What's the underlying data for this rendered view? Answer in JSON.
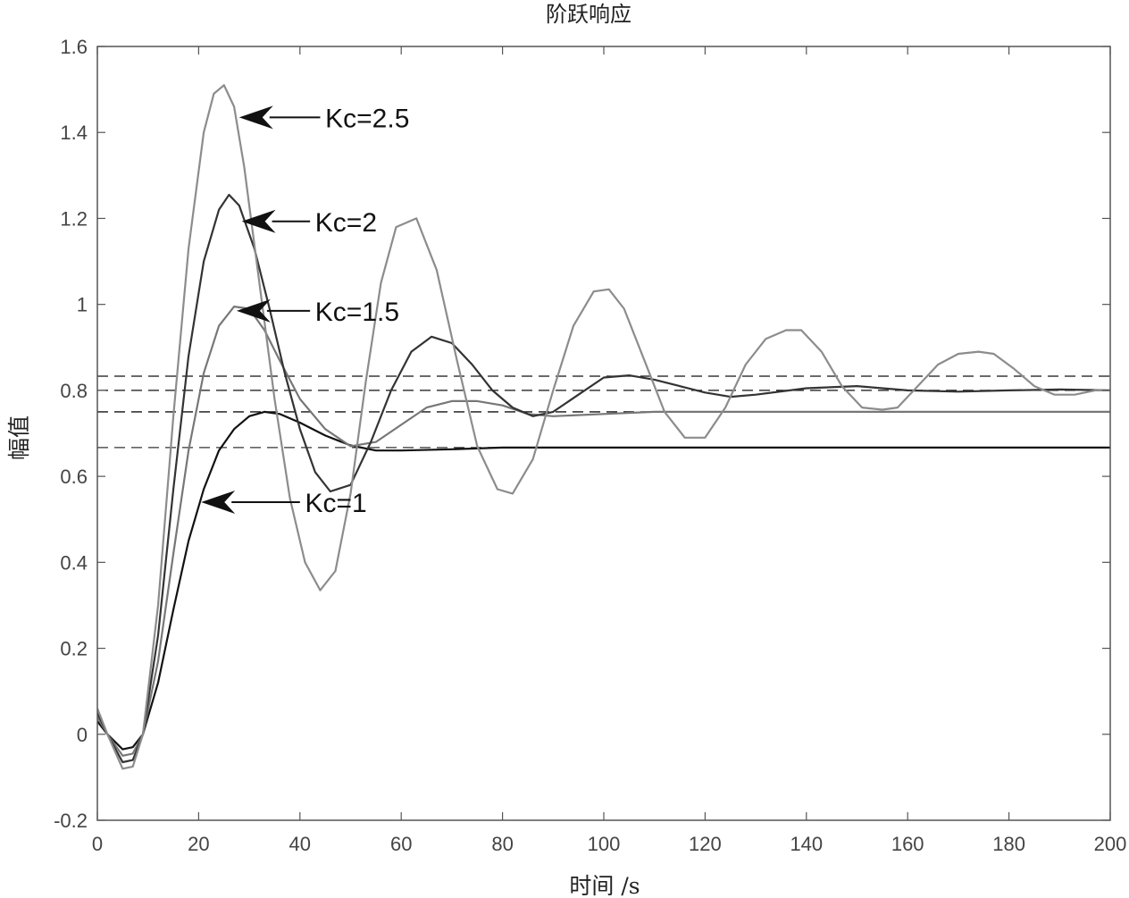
{
  "chart_data": {
    "type": "line",
    "title": "阶跃响应",
    "xlabel": "时间 /s",
    "ylabel": "幅值",
    "xlim": [
      0,
      200
    ],
    "ylim": [
      -0.2,
      1.6
    ],
    "xticks": [
      "0",
      "20",
      "40",
      "60",
      "80",
      "100",
      "120",
      "140",
      "160",
      "180",
      "200"
    ],
    "yticks": [
      "-0.2",
      "0",
      "0.2",
      "0.4",
      "0.6",
      "0.8",
      "1",
      "1.2",
      "1.4",
      "1.6"
    ],
    "grid": false,
    "series": [
      {
        "name": "Kc=1",
        "color": "#111111",
        "x": [
          0,
          2,
          5,
          7,
          9,
          12,
          15,
          18,
          21,
          24,
          27,
          30,
          33,
          36,
          40,
          45,
          50,
          55,
          60,
          70,
          80,
          100,
          150,
          200
        ],
        "y": [
          0.03,
          0.0,
          -0.035,
          -0.03,
          0.0,
          0.12,
          0.29,
          0.45,
          0.57,
          0.66,
          0.71,
          0.74,
          0.75,
          0.745,
          0.725,
          0.695,
          0.672,
          0.66,
          0.66,
          0.663,
          0.667,
          0.667,
          0.667,
          0.667
        ]
      },
      {
        "name": "Kc=1.5",
        "color": "#777777",
        "x": [
          0,
          2,
          5,
          7,
          9,
          12,
          15,
          18,
          21,
          24,
          27,
          30,
          33,
          36,
          40,
          45,
          50,
          55,
          60,
          65,
          70,
          75,
          80,
          85,
          90,
          100,
          110,
          130,
          150,
          200
        ],
        "y": [
          0.04,
          0.0,
          -0.05,
          -0.045,
          0.0,
          0.17,
          0.42,
          0.66,
          0.84,
          0.95,
          0.995,
          0.99,
          0.94,
          0.87,
          0.78,
          0.71,
          0.67,
          0.68,
          0.72,
          0.76,
          0.775,
          0.775,
          0.765,
          0.745,
          0.74,
          0.745,
          0.75,
          0.75,
          0.75,
          0.75
        ]
      },
      {
        "name": "Kc=2",
        "color": "#333333",
        "x": [
          0,
          2,
          5,
          7,
          9,
          12,
          15,
          18,
          21,
          24,
          26,
          28,
          31,
          34,
          37,
          40,
          43,
          46,
          50,
          54,
          58,
          62,
          66,
          70,
          74,
          78,
          82,
          86,
          90,
          95,
          100,
          105,
          110,
          115,
          120,
          125,
          130,
          140,
          150,
          160,
          170,
          180,
          190,
          200
        ],
        "y": [
          0.05,
          0.0,
          -0.065,
          -0.06,
          0.0,
          0.23,
          0.57,
          0.88,
          1.1,
          1.22,
          1.255,
          1.23,
          1.13,
          0.99,
          0.84,
          0.71,
          0.61,
          0.565,
          0.58,
          0.68,
          0.8,
          0.89,
          0.925,
          0.91,
          0.86,
          0.8,
          0.76,
          0.74,
          0.75,
          0.79,
          0.83,
          0.835,
          0.825,
          0.81,
          0.795,
          0.785,
          0.79,
          0.805,
          0.81,
          0.8,
          0.797,
          0.8,
          0.802,
          0.8
        ]
      },
      {
        "name": "Kc=2.5",
        "color": "#8c8c8c",
        "x": [
          0,
          2,
          5,
          7,
          9,
          12,
          15,
          18,
          21,
          23,
          25,
          27,
          29,
          32,
          35,
          38,
          41,
          44,
          47,
          50,
          53,
          56,
          59,
          63,
          67,
          71,
          75,
          79,
          82,
          86,
          90,
          94,
          98,
          101,
          104,
          108,
          112,
          116,
          120,
          124,
          128,
          132,
          136,
          139,
          143,
          147,
          151,
          155,
          158,
          162,
          166,
          170,
          174,
          177,
          181,
          185,
          189,
          193,
          197,
          200
        ],
        "y": [
          0.06,
          0.0,
          -0.08,
          -0.075,
          0.0,
          0.3,
          0.74,
          1.13,
          1.4,
          1.49,
          1.51,
          1.46,
          1.32,
          1.05,
          0.78,
          0.55,
          0.4,
          0.335,
          0.38,
          0.56,
          0.82,
          1.05,
          1.18,
          1.2,
          1.08,
          0.87,
          0.67,
          0.57,
          0.56,
          0.64,
          0.8,
          0.95,
          1.03,
          1.035,
          0.99,
          0.87,
          0.75,
          0.69,
          0.69,
          0.76,
          0.86,
          0.92,
          0.94,
          0.94,
          0.89,
          0.81,
          0.76,
          0.755,
          0.76,
          0.81,
          0.86,
          0.885,
          0.89,
          0.885,
          0.85,
          0.81,
          0.79,
          0.79,
          0.8,
          0.8
        ]
      }
    ],
    "reference_lines": [
      {
        "y": 0.833,
        "style": "dashed",
        "color": "#111111"
      },
      {
        "y": 0.8,
        "style": "dashed",
        "color": "#111111"
      },
      {
        "y": 0.75,
        "style": "dashed",
        "x_end": 130,
        "color": "#111111"
      },
      {
        "y": 0.75,
        "style": "solid",
        "x_start": 130,
        "color": "#555555"
      },
      {
        "y": 0.667,
        "style": "dashed",
        "x_end": 80,
        "color": "#333333"
      },
      {
        "y": 0.667,
        "style": "solid",
        "x_start": 80,
        "color": "#111111"
      }
    ],
    "annotations": [
      {
        "text": "Kc=2.5",
        "text_at": [
          45,
          1.435
        ],
        "arrow_from": [
          44,
          1.435
        ],
        "arrow_to": [
          28,
          1.435
        ]
      },
      {
        "text": "Kc=2",
        "text_at": [
          43,
          1.193
        ],
        "arrow_from": [
          42,
          1.193
        ],
        "arrow_to": [
          28.5,
          1.193
        ]
      },
      {
        "text": "Kc=1.5",
        "text_at": [
          43,
          0.985
        ],
        "arrow_from": [
          42,
          0.985
        ],
        "arrow_to": [
          27.5,
          0.985
        ]
      },
      {
        "text": "Kc=1",
        "text_at": [
          41,
          0.54
        ],
        "arrow_from": [
          40,
          0.54
        ],
        "arrow_to": [
          20.5,
          0.54
        ]
      }
    ]
  }
}
